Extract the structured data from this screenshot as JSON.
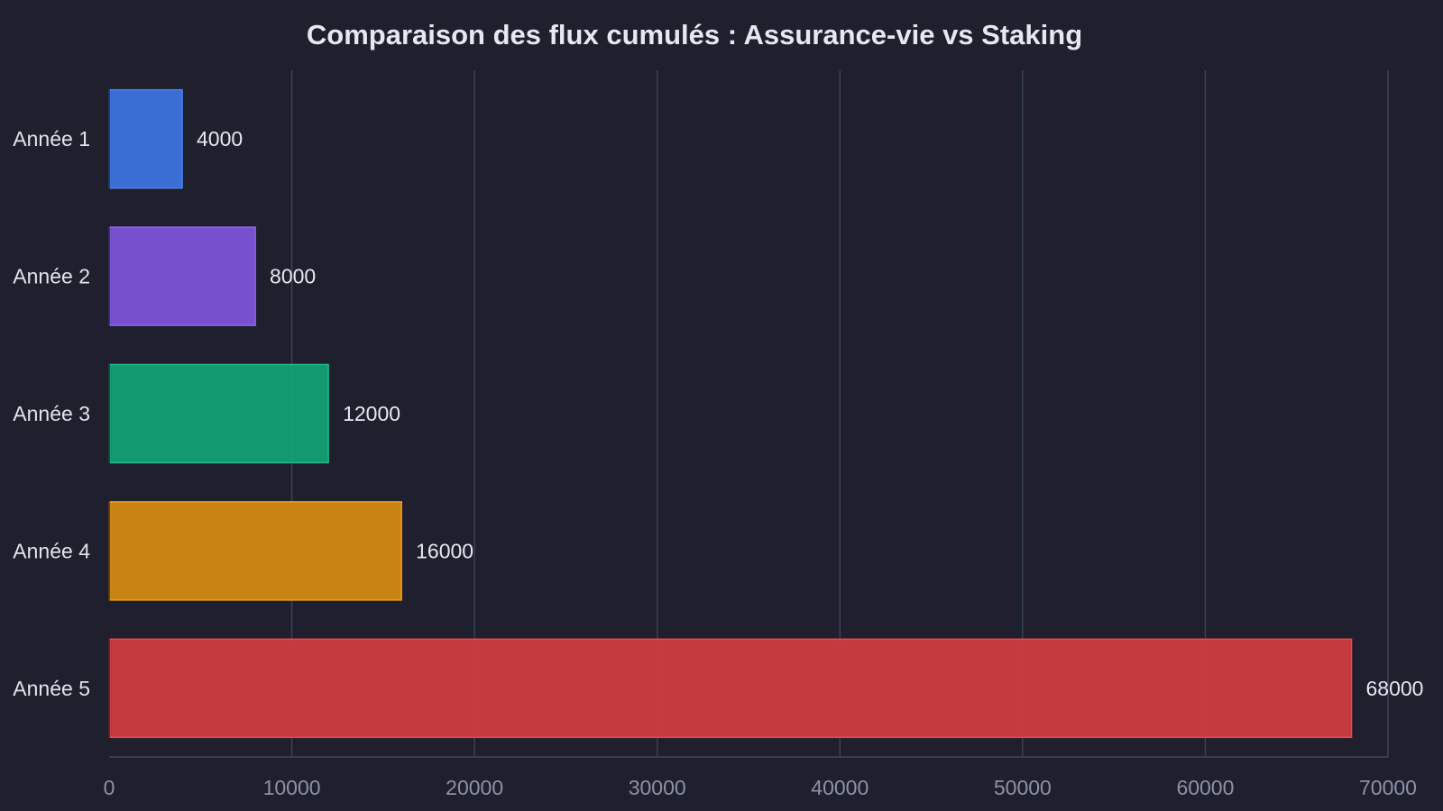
{
  "chart_data": {
    "type": "bar",
    "orientation": "horizontal",
    "title": "Comparaison des flux cumulés : Assurance-vie vs Staking",
    "xlabel": "",
    "ylabel": "",
    "categories": [
      "Année 1",
      "Année 2",
      "Année 3",
      "Année 4",
      "Année 5"
    ],
    "values": [
      4000,
      8000,
      12000,
      16000,
      68000
    ],
    "value_labels": [
      "4000",
      "8000",
      "12000",
      "16000",
      "68000"
    ],
    "bar_colors": [
      "#3b73dd",
      "#7b53d6",
      "#12a073",
      "#d28911",
      "#cd3c40"
    ],
    "bar_edge_colors": [
      "#4d82f0",
      "#8d63ef",
      "#1cb884",
      "#eb9c18",
      "#e8484c"
    ],
    "xlim": [
      0,
      70000
    ],
    "x_ticks": [
      0,
      10000,
      20000,
      30000,
      40000,
      50000,
      60000,
      70000
    ],
    "x_tick_labels": [
      "0",
      "10000",
      "20000",
      "30000",
      "40000",
      "50000",
      "60000",
      "70000"
    ],
    "grid": "vertical",
    "legend": "none",
    "colors": {
      "background": "#1f1f2e",
      "grid": "#3a4558",
      "text": "#e6e8f0",
      "tick_text": "#8b93a8"
    }
  }
}
